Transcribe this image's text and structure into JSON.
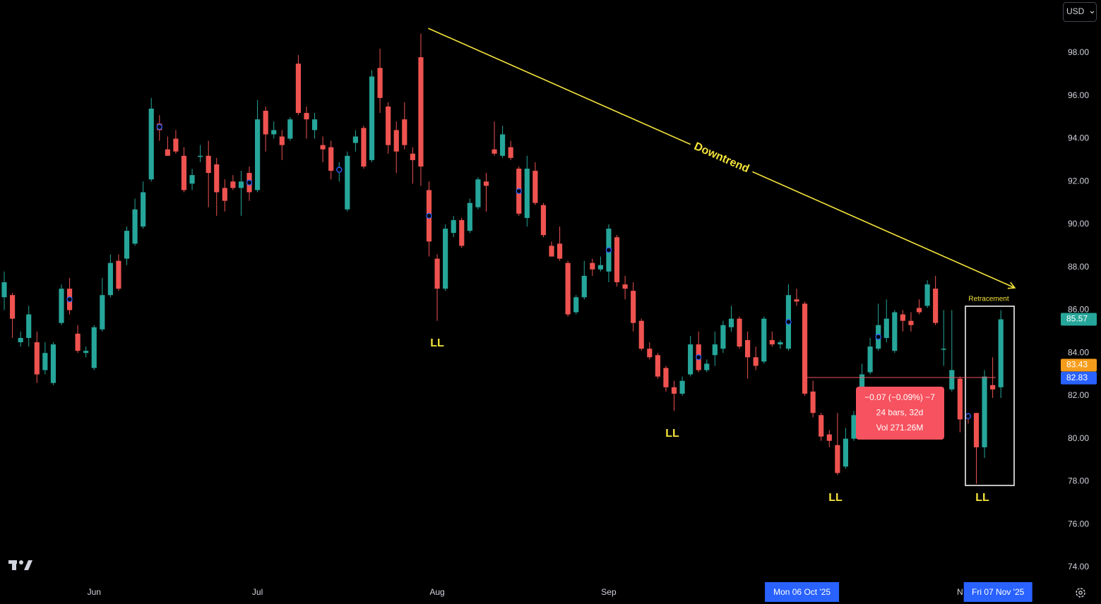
{
  "toolbar": {
    "currency": "USD"
  },
  "chart_data": {
    "type": "candlestick",
    "open": [
      86.6,
      86.7,
      84.5,
      84.7,
      84.5,
      83.2,
      82.6,
      85.4,
      87.0,
      84.9,
      84.0,
      83.3,
      85.1,
      86.7,
      88.3,
      88.4,
      89.1,
      89.9,
      92.1,
      94.7,
      93.5,
      94.0,
      93.2,
      91.9,
      93.15,
      93.2,
      92.8,
      91.7,
      92.0,
      91.7,
      92.4,
      91.6,
      95.3,
      94.2,
      94.1,
      94.0,
      97.5,
      95.2,
      94.4,
      93.7,
      93.6,
      92.5,
      90.7,
      93.8,
      94.5,
      93.0,
      97.3,
      95.5,
      94.4,
      94.9,
      93.3,
      97.8,
      91.6,
      88.4,
      87.0,
      89.6,
      90.2,
      89.7,
      90.8,
      92.0,
      93.5,
      93.2,
      93.6,
      92.6,
      90.3,
      92.5,
      90.9,
      89.0,
      89.1,
      88.2,
      85.9,
      86.6,
      88.2,
      87.9,
      87.8,
      89.4,
      87.2,
      86.9,
      85.5,
      84.2,
      83.9,
      83.3,
      82.4,
      82.1,
      83.0,
      84.4,
      83.2,
      83.9,
      84.2,
      85.2,
      85.6,
      84.6,
      83.8,
      83.6,
      84.6,
      84.4,
      84.2,
      86.5,
      86.3,
      82.2,
      81.1,
      80.2,
      79.7,
      78.7,
      80.0,
      81.2,
      83.1,
      84.2,
      84.7,
      84.1,
      85.8,
      85.5,
      86.1,
      86.2,
      87.0,
      84.15,
      82.3,
      82.8,
      81.1,
      81.2,
      79.6,
      82.5,
      82.4
    ],
    "high": [
      87.8,
      86.8,
      85.0,
      86.2,
      85.0,
      84.5,
      84.5,
      87.2,
      87.5,
      85.3,
      84.3,
      85.3,
      87.5,
      88.6,
      88.6,
      89.9,
      91.2,
      92.0,
      95.9,
      95.1,
      94.1,
      94.4,
      93.6,
      92.6,
      93.7,
      93.9,
      93.1,
      92.1,
      92.3,
      92.5,
      92.7,
      95.8,
      95.5,
      94.8,
      94.4,
      95.0,
      97.9,
      95.5,
      95.2,
      94.1,
      93.9,
      92.9,
      93.4,
      94.4,
      94.6,
      97.2,
      98.2,
      95.7,
      94.8,
      95.7,
      93.6,
      98.9,
      92.0,
      88.6,
      90.0,
      90.4,
      90.3,
      91.2,
      92.2,
      92.4,
      94.8,
      94.6,
      93.9,
      92.7,
      93.2,
      92.9,
      91.0,
      89.2,
      89.9,
      88.3,
      86.7,
      88.3,
      88.4,
      88.5,
      90.0,
      89.5,
      87.6,
      87.3,
      85.6,
      84.5,
      84.0,
      83.4,
      82.7,
      82.9,
      84.8,
      85.0,
      83.7,
      85.0,
      85.5,
      86.2,
      85.7,
      85.0,
      84.3,
      85.7,
      85.0,
      84.6,
      87.2,
      87.0,
      86.4,
      82.7,
      81.2,
      80.4,
      81.2,
      80.5,
      81.3,
      83.5,
      84.7,
      86.3,
      86.5,
      86.0,
      86.0,
      85.9,
      86.5,
      87.4,
      87.6,
      86.0,
      86.0,
      82.9,
      81.2,
      81.2,
      83.2,
      83.8,
      86.0
    ],
    "low": [
      86.0,
      84.7,
      84.3,
      84.3,
      82.6,
      83.0,
      82.5,
      85.3,
      85.8,
      84.0,
      83.8,
      83.2,
      85.0,
      86.6,
      86.9,
      88.1,
      89.0,
      89.8,
      92.0,
      93.9,
      93.2,
      93.3,
      91.5,
      91.6,
      92.9,
      90.8,
      90.4,
      90.6,
      91.6,
      90.4,
      91.1,
      91.5,
      93.4,
      94.0,
      93.0,
      93.9,
      95.1,
      94.0,
      94.0,
      92.9,
      92.1,
      92.0,
      90.6,
      93.4,
      92.6,
      92.9,
      95.2,
      93.3,
      92.4,
      93.5,
      91.9,
      91.8,
      88.5,
      85.5,
      86.9,
      89.4,
      88.9,
      89.6,
      90.7,
      90.6,
      93.2,
      93.1,
      93.0,
      90.4,
      89.9,
      90.9,
      89.4,
      88.5,
      88.3,
      85.7,
      85.8,
      86.5,
      87.6,
      87.8,
      87.3,
      87.1,
      86.5,
      85.0,
      84.1,
      83.7,
      82.8,
      82.2,
      81.3,
      82.0,
      82.9,
      83.1,
      83.1,
      83.4,
      84.0,
      85.0,
      84.2,
      82.8,
      83.2,
      83.5,
      84.3,
      84.2,
      84.1,
      86.2,
      82.0,
      81.0,
      79.9,
      79.6,
      78.3,
      78.6,
      79.9,
      81.1,
      83.0,
      84.1,
      84.5,
      84.0,
      85.0,
      85.0,
      85.8,
      86.1,
      85.3,
      83.4,
      82.2,
      80.3,
      80.7,
      77.9,
      79.1,
      81.9,
      81.9
    ],
    "close": [
      87.3,
      85.6,
      84.7,
      85.8,
      83.0,
      84.0,
      84.4,
      87.0,
      86.0,
      84.1,
      84.1,
      85.2,
      86.7,
      88.2,
      87.0,
      89.7,
      90.7,
      91.5,
      95.4,
      94.4,
      93.2,
      93.4,
      91.6,
      92.3,
      93.2,
      92.4,
      91.5,
      91.1,
      91.7,
      92.0,
      91.5,
      94.9,
      94.2,
      94.4,
      93.7,
      94.9,
      95.2,
      94.9,
      94.9,
      93.5,
      92.5,
      92.6,
      93.2,
      94.1,
      92.7,
      96.9,
      95.9,
      93.7,
      93.4,
      93.7,
      93.0,
      92.7,
      89.2,
      87.0,
      89.8,
      90.2,
      89.0,
      91.0,
      92.1,
      91.8,
      93.3,
      94.2,
      93.1,
      90.5,
      92.6,
      91.0,
      89.5,
      88.5,
      88.4,
      85.8,
      86.6,
      87.6,
      87.9,
      88.1,
      89.8,
      87.3,
      87.0,
      85.4,
      84.2,
      83.8,
      82.9,
      82.4,
      82.1,
      82.7,
      84.4,
      83.2,
      83.5,
      84.4,
      85.3,
      85.6,
      84.3,
      83.8,
      83.4,
      85.6,
      84.4,
      84.5,
      86.7,
      86.4,
      82.1,
      81.2,
      80.1,
      79.9,
      78.4,
      80.0,
      81.1,
      83.0,
      84.3,
      85.3,
      85.6,
      85.9,
      85.5,
      85.3,
      85.9,
      87.2,
      85.4,
      84.2,
      83.2,
      80.9,
      81.0,
      79.6,
      82.9,
      82.3,
      85.57
    ],
    "up_color": "#26a69a",
    "down_color": "#ef5350",
    "ylim": [
      73.34,
      100.47
    ],
    "yticks": [
      {
        "value": 74,
        "label": "74.00"
      },
      {
        "value": 76,
        "label": "76.00"
      },
      {
        "value": 78,
        "label": "78.00"
      },
      {
        "value": 80,
        "label": "80.00"
      },
      {
        "value": 82,
        "label": "82.00"
      },
      {
        "value": 84,
        "label": "84.00"
      },
      {
        "value": 86,
        "label": "86.00"
      },
      {
        "value": 88,
        "label": "88.00"
      },
      {
        "value": 90,
        "label": "90.00"
      },
      {
        "value": 92,
        "label": "92.00"
      },
      {
        "value": 94,
        "label": "94.00"
      },
      {
        "value": 96,
        "label": "96.00"
      },
      {
        "value": 98,
        "label": "98.00"
      }
    ],
    "xlim": [
      -0.52,
      128.9
    ],
    "xticks": [
      {
        "value": 11,
        "label": "Jun"
      },
      {
        "value": 31,
        "label": "Jul"
      },
      {
        "value": 53,
        "label": "Aug"
      },
      {
        "value": 74,
        "label": "Sep"
      },
      {
        "value": 117,
        "label": "N"
      }
    ],
    "highlighted_dates": [
      {
        "value": 98,
        "label": "Mon 06 Oct '25"
      },
      {
        "value": 122,
        "label": "Fri 07 Nov '25"
      }
    ],
    "price_labels": [
      {
        "value": 85.57,
        "label": "85.57",
        "color": "#26a69a"
      },
      {
        "value": 83.43,
        "label": "83.43",
        "color": "#f59d1b"
      },
      {
        "value": 82.83,
        "label": "82.83",
        "color": "#2962ff"
      }
    ],
    "trendline": {
      "label": "Downtrend",
      "x": [
        51.9,
        123.7
      ],
      "y": [
        99.15,
        87.04
      ],
      "color": "#f5e43b"
    },
    "annotations": [
      "LL",
      "LL",
      "LL",
      "LL"
    ],
    "retracement_label": "Retracement",
    "measure": [
      "−0.07 (−0.09%) −7",
      "24 bars, 32d",
      "Vol 271.26M"
    ]
  }
}
